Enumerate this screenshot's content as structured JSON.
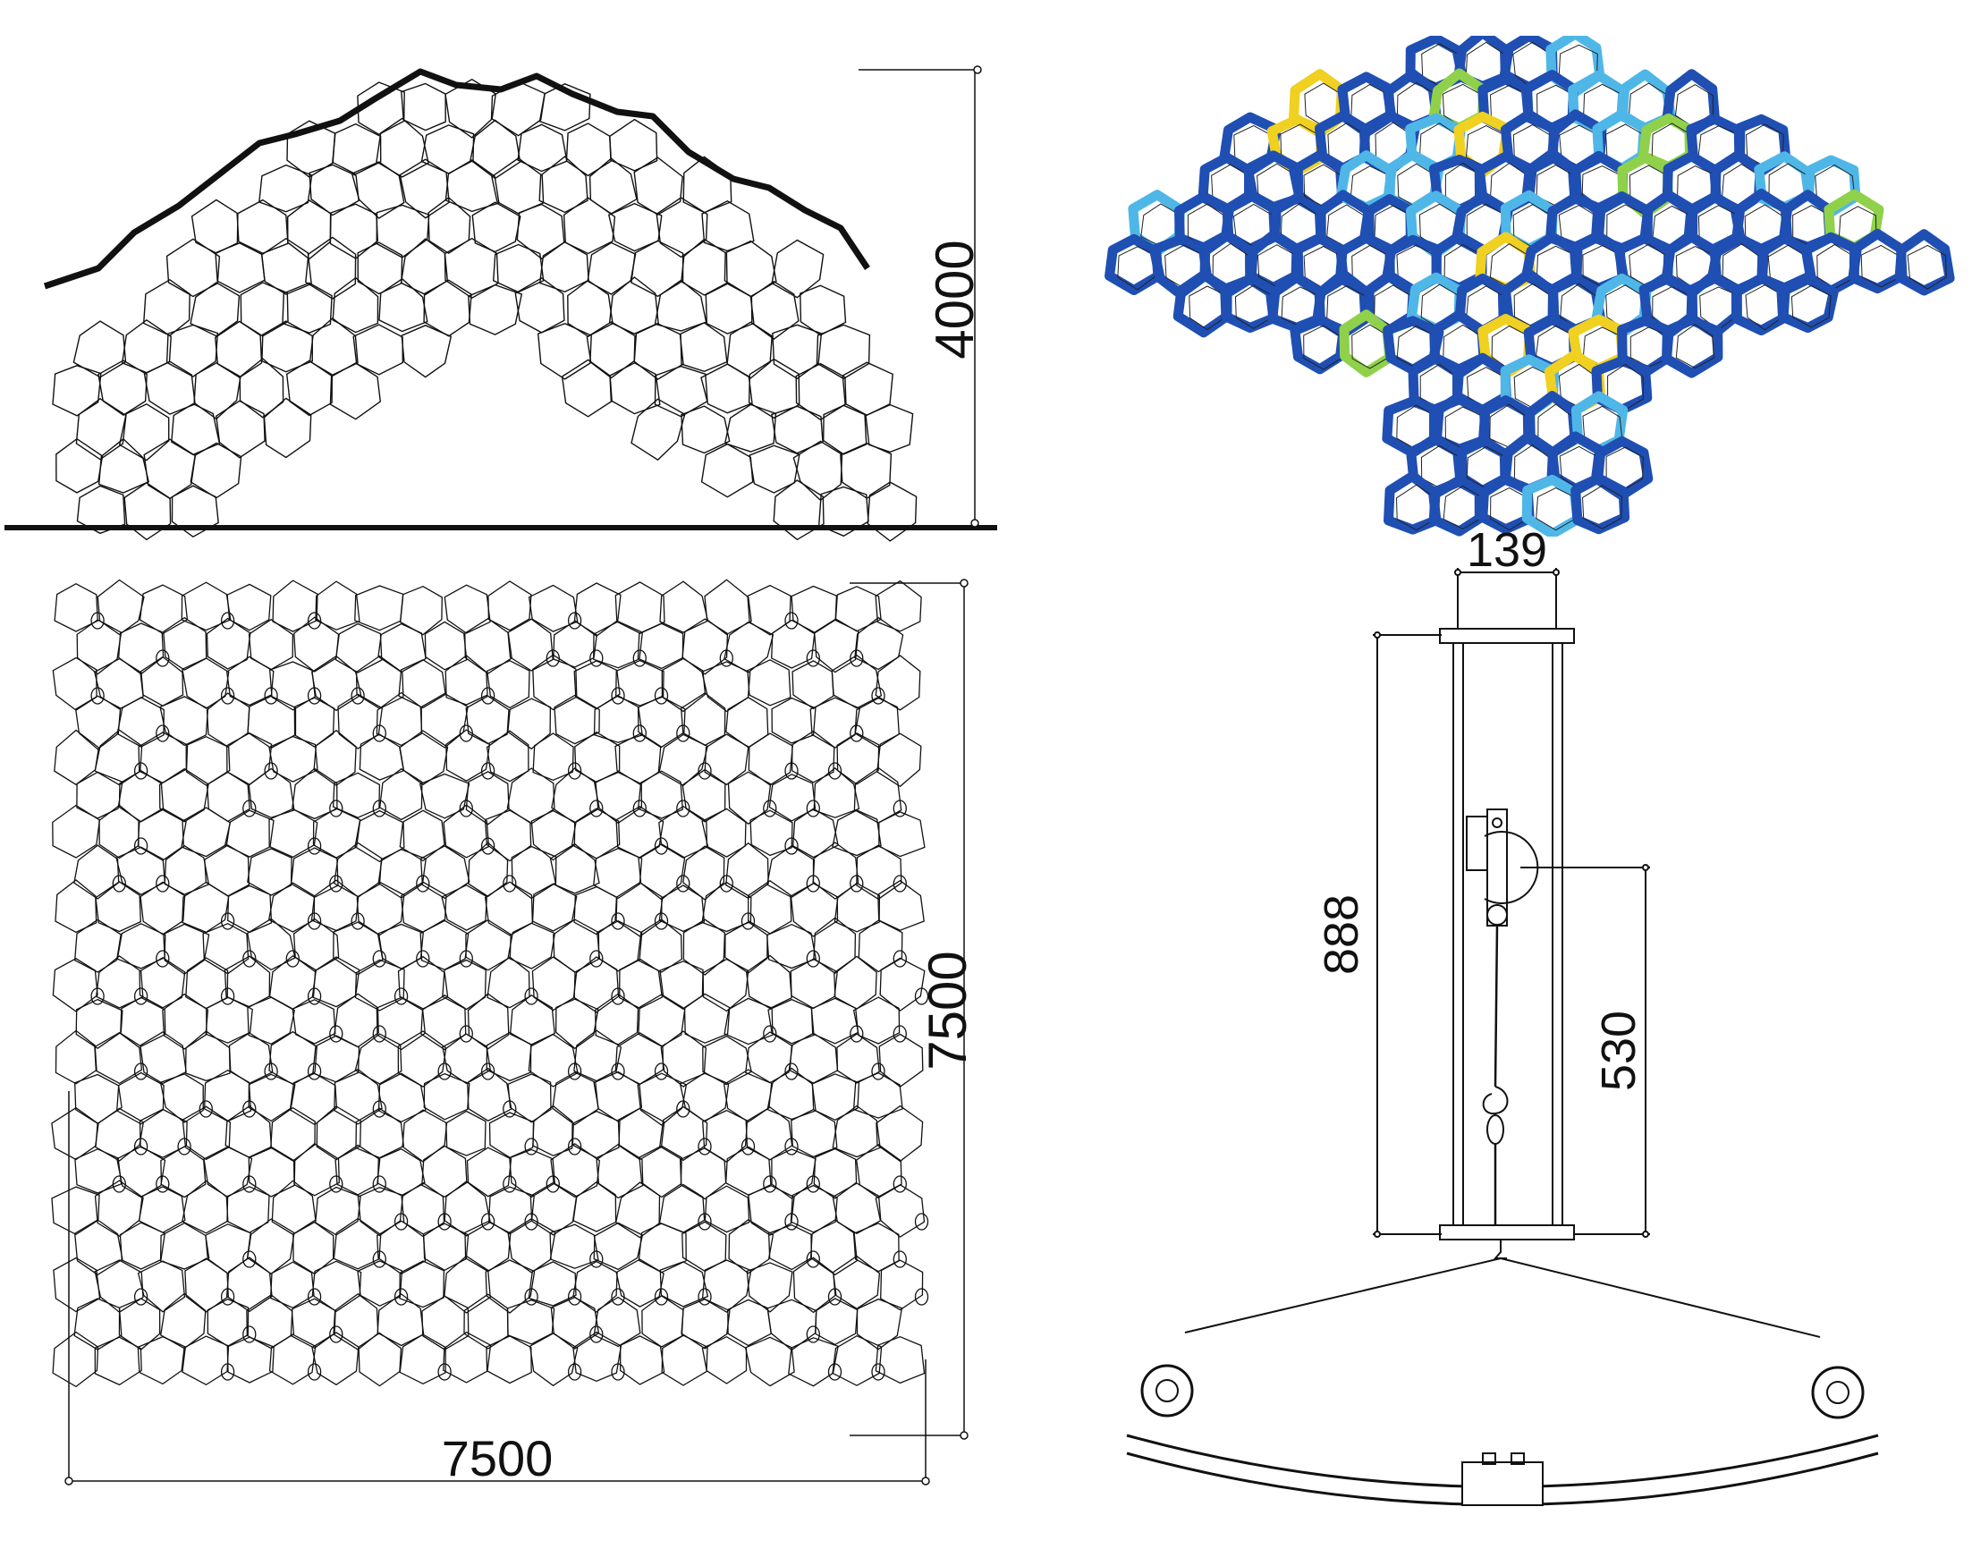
{
  "dimensions": {
    "elevation_height": "4000",
    "plan_width": "7500",
    "plan_height": "7500",
    "detail_width": "139",
    "detail_height": "888",
    "detail_inner_height": "530"
  },
  "colors": {
    "line": "#111111",
    "stress_base": "#1f4fb3",
    "stress_mid": "#4fb7e8",
    "stress_high": "#8fd14a",
    "stress_peak": "#f0d020"
  }
}
